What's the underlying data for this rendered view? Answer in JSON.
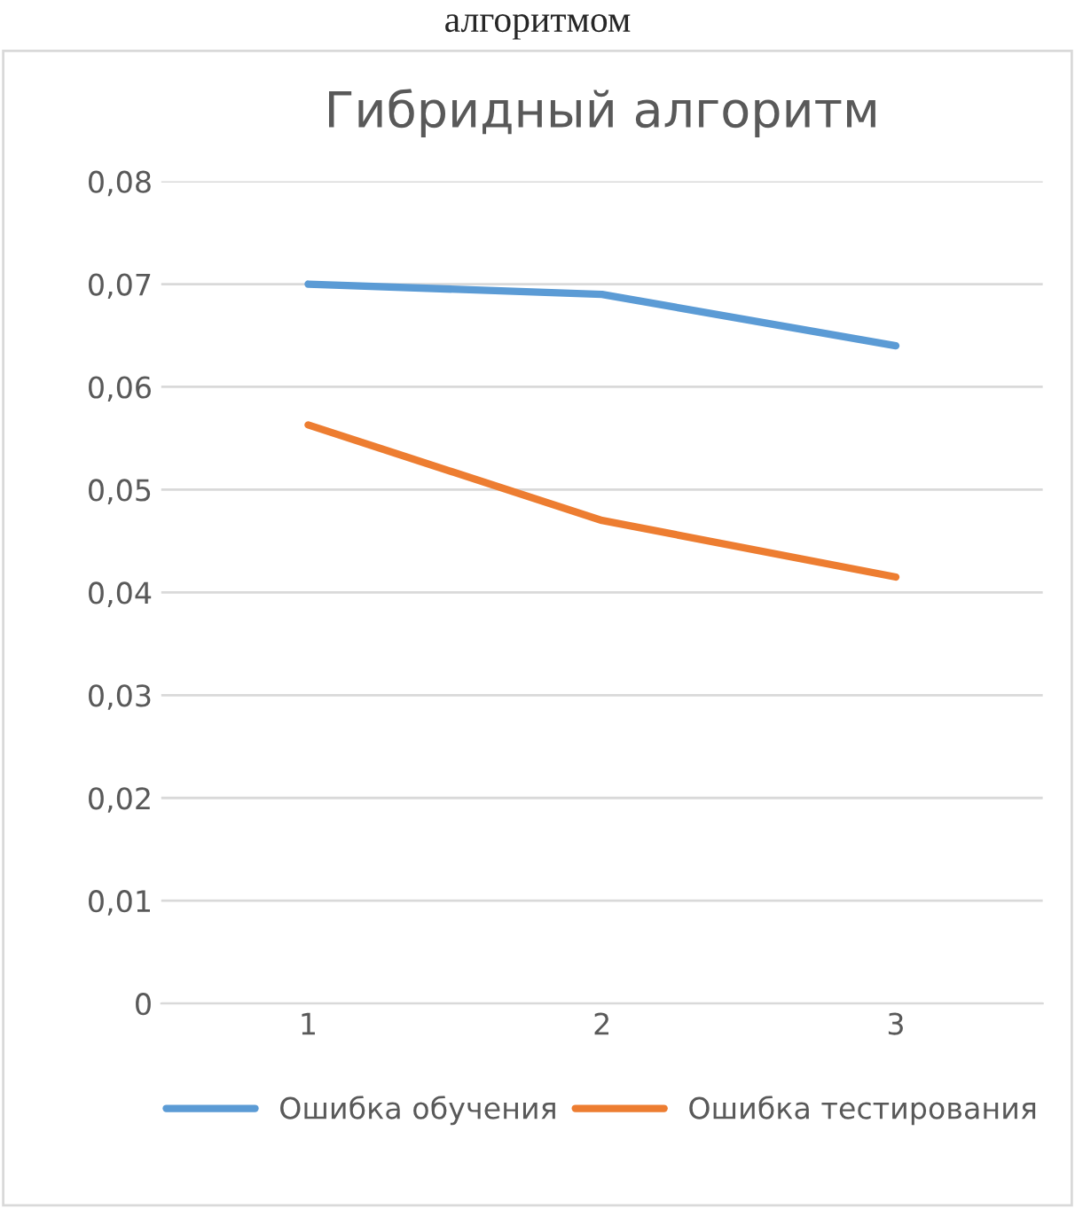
{
  "chart_data": {
    "type": "line",
    "title": "Гибридный алгоритм",
    "annotations": [
      "алгоритмом"
    ],
    "categories": [
      "1",
      "2",
      "3"
    ],
    "series": [
      {
        "name": "Ошибка обучения",
        "color": "#5b9bd5",
        "values": [
          0.07,
          0.069,
          0.064
        ]
      },
      {
        "name": "Ошибка тестирования",
        "color": "#ed7d31",
        "values": [
          0.0563,
          0.047,
          0.0415
        ]
      }
    ],
    "ylim": [
      0,
      0.08
    ],
    "yticks": [
      {
        "value": 0,
        "label": "0"
      },
      {
        "value": 0.01,
        "label": "0,01"
      },
      {
        "value": 0.02,
        "label": "0,02"
      },
      {
        "value": 0.03,
        "label": "0,03"
      },
      {
        "value": 0.04,
        "label": "0,04"
      },
      {
        "value": 0.05,
        "label": "0,05"
      },
      {
        "value": 0.06,
        "label": "0,06"
      },
      {
        "value": 0.07,
        "label": "0,07"
      },
      {
        "value": 0.08,
        "label": "0,08"
      }
    ],
    "grid": "y",
    "legend": "bottom",
    "marker": "none",
    "line_style": "solid"
  }
}
